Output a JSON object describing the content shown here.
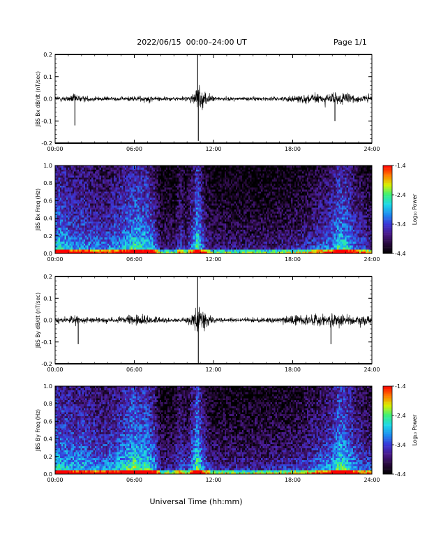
{
  "header": {
    "title": "2022/06/15  00:00–24:00 UT",
    "page": "Page 1/1"
  },
  "x_axis_title": "Universal Time (hh:mm)",
  "colors": {
    "trace": "#000000",
    "colormap": [
      "#000000",
      "#280a3c",
      "#4a1a8a",
      "#3a36d8",
      "#1e8ef0",
      "#1ed8e8",
      "#3cf07a",
      "#d8f000",
      "#ff7a00",
      "#ff0000"
    ]
  },
  "chart_data": [
    {
      "type": "line",
      "panel": "dbx",
      "ylabel": "JBS Bx dB/dt (nT/sec)",
      "x_range_hours": [
        0,
        24
      ],
      "xticks": [
        "00:00",
        "06:00",
        "12:00",
        "18:00",
        "24:00"
      ],
      "ylim": [
        -0.2,
        0.2
      ],
      "yticks": [
        "-0.2",
        "-0.1",
        "0.0",
        "0.1",
        "0.2"
      ],
      "amplitude_envelope_hours": [
        0,
        1,
        1.5,
        2,
        3,
        5,
        6,
        7,
        8,
        9,
        10,
        10.5,
        10.8,
        11,
        11.5,
        12,
        13,
        15,
        17,
        18,
        19,
        20,
        21,
        21.5,
        22,
        23,
        24
      ],
      "amplitude_envelope_values": [
        0.03,
        0.03,
        0.05,
        0.03,
        0.025,
        0.02,
        0.03,
        0.035,
        0.025,
        0.02,
        0.025,
        0.06,
        0.17,
        0.12,
        0.06,
        0.025,
        0.02,
        0.02,
        0.02,
        0.035,
        0.05,
        0.05,
        0.06,
        0.07,
        0.06,
        0.04,
        0.04
      ],
      "spikes": [
        {
          "t": 1.5,
          "v": -0.12
        },
        {
          "t": 10.8,
          "v": 0.2
        },
        {
          "t": 10.85,
          "v": -0.19
        },
        {
          "t": 21.2,
          "v": -0.1
        }
      ]
    },
    {
      "type": "heatmap",
      "panel": "bx-spec",
      "ylabel": "JBS Bx Freq (Hz)",
      "x_range_hours": [
        0,
        24
      ],
      "xticks": [
        "00:00",
        "06:00",
        "12:00",
        "18:00",
        "24:00"
      ],
      "ylim": [
        0.0,
        1.0
      ],
      "yticks": [
        "0.0",
        "0.2",
        "0.4",
        "0.6",
        "0.8",
        "1.0"
      ],
      "colorbar_label": "Log₁₀ Power",
      "colorbar_range": [
        -4.4,
        -1.4
      ],
      "colorbar_ticks": [
        "-1.4",
        "-2.4",
        "-3.4",
        "-4.4"
      ],
      "activity_hours": [
        0,
        0.5,
        1,
        1.5,
        2,
        3,
        4,
        5,
        5.5,
        6,
        6.5,
        7,
        7.5,
        8,
        9,
        9.5,
        10,
        10.5,
        10.8,
        11,
        11.5,
        12,
        14,
        16,
        18,
        19,
        20,
        21,
        21.5,
        22,
        22.5,
        23,
        24
      ],
      "activity_values": [
        0.65,
        0.7,
        0.6,
        0.55,
        0.6,
        0.5,
        0.5,
        0.6,
        0.65,
        0.75,
        0.7,
        0.7,
        0.55,
        0.25,
        0.25,
        0.45,
        0.3,
        0.6,
        0.85,
        0.6,
        0.35,
        0.25,
        0.25,
        0.25,
        0.3,
        0.35,
        0.45,
        0.55,
        0.75,
        0.7,
        0.55,
        0.45,
        0.35
      ]
    },
    {
      "type": "line",
      "panel": "dby",
      "ylabel": "JBS By dB/dt (nT/sec)",
      "x_range_hours": [
        0,
        24
      ],
      "xticks": [
        "00:00",
        "06:00",
        "12:00",
        "18:00",
        "24:00"
      ],
      "ylim": [
        -0.2,
        0.2
      ],
      "yticks": [
        "-0.2",
        "-0.1",
        "0.0",
        "0.1",
        "0.2"
      ],
      "amplitude_envelope_hours": [
        0,
        1,
        1.5,
        2,
        3,
        5,
        6,
        6.5,
        7,
        8,
        9,
        10,
        10.5,
        10.8,
        11,
        11.5,
        12,
        13,
        15,
        17,
        18,
        19,
        20,
        21,
        21.5,
        22,
        23,
        24
      ],
      "amplitude_envelope_values": [
        0.03,
        0.03,
        0.05,
        0.03,
        0.025,
        0.03,
        0.05,
        0.06,
        0.04,
        0.03,
        0.02,
        0.03,
        0.08,
        0.18,
        0.14,
        0.07,
        0.03,
        0.02,
        0.025,
        0.025,
        0.05,
        0.06,
        0.06,
        0.08,
        0.08,
        0.06,
        0.05,
        0.05
      ],
      "spikes": [
        {
          "t": 1.75,
          "v": -0.11
        },
        {
          "t": 10.8,
          "v": 0.2
        },
        {
          "t": 10.85,
          "v": -0.2
        },
        {
          "t": 20.9,
          "v": -0.11
        }
      ]
    },
    {
      "type": "heatmap",
      "panel": "by-spec",
      "ylabel": "JBS By Freq (Hz)",
      "x_range_hours": [
        0,
        24
      ],
      "xticks": [
        "00:00",
        "06:00",
        "12:00",
        "18:00",
        "24:00"
      ],
      "ylim": [
        0.0,
        1.0
      ],
      "yticks": [
        "0.0",
        "0.2",
        "0.4",
        "0.6",
        "0.8",
        "1.0"
      ],
      "colorbar_label": "Log₁₀ Power",
      "colorbar_range": [
        -4.4,
        -1.4
      ],
      "colorbar_ticks": [
        "-1.4",
        "-2.4",
        "-3.4",
        "-4.4"
      ],
      "activity_hours": [
        0,
        0.5,
        1,
        1.5,
        2,
        3,
        4,
        5,
        5.5,
        6,
        6.5,
        7,
        7.5,
        8,
        9,
        9.5,
        10,
        10.5,
        10.8,
        11,
        11.5,
        12,
        14,
        16,
        18,
        19,
        20,
        21,
        21.5,
        22,
        22.5,
        23,
        24
      ],
      "activity_values": [
        0.7,
        0.7,
        0.65,
        0.6,
        0.65,
        0.55,
        0.55,
        0.65,
        0.75,
        0.85,
        0.75,
        0.75,
        0.6,
        0.3,
        0.3,
        0.5,
        0.35,
        0.65,
        0.9,
        0.65,
        0.4,
        0.3,
        0.3,
        0.3,
        0.35,
        0.4,
        0.5,
        0.6,
        0.8,
        0.75,
        0.6,
        0.5,
        0.4
      ]
    }
  ]
}
